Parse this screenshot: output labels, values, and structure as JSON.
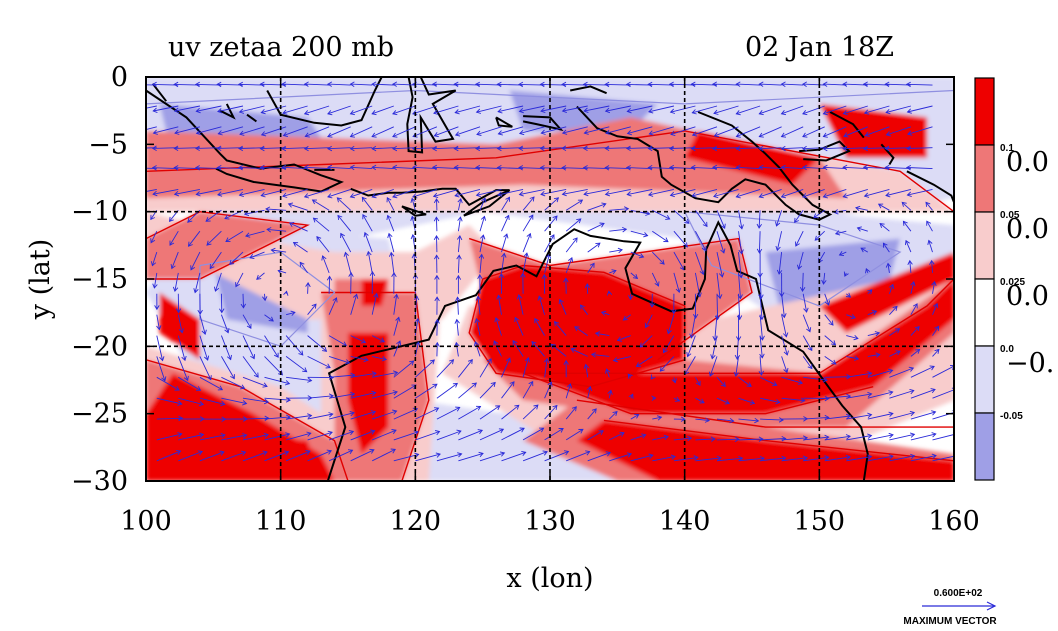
{
  "chart_data": {
    "type": "heatmap",
    "title_left": "uv zetaa 200 mb",
    "title_right": "02 Jan 18Z",
    "xlabel": "x (lon)",
    "ylabel": "y (lat)",
    "xlim": [
      100,
      160
    ],
    "ylim": [
      -30,
      0
    ],
    "x_ticks": [
      100,
      110,
      120,
      130,
      140,
      150,
      160
    ],
    "y_ticks": [
      0,
      -5,
      -10,
      -15,
      -20,
      -25,
      -30
    ],
    "x_tick_labels": [
      "100",
      "110",
      "120",
      "130",
      "140",
      "150",
      "160"
    ],
    "y_tick_labels": [
      "0",
      "−5",
      "−10",
      "−15",
      "−20",
      "−25",
      "−30"
    ],
    "grid_lon": [
      110,
      120,
      130,
      140,
      150
    ],
    "grid_lat": [
      -10,
      -20
    ],
    "colorbar": {
      "levels": [
        "0.1",
        "0.05",
        "0.025",
        "0.0",
        "-0.05"
      ],
      "side_labels": [
        "0.0",
        "0.0",
        "0.0",
        "−0."
      ],
      "colors": [
        "#ee0000",
        "#ee7777",
        "#f8cccc",
        "#ffffff",
        "#dcdcf6",
        "#9f9fe6"
      ]
    },
    "vector_reference": {
      "value": "0.600E+02",
      "label": "MAXIMUM VECTOR"
    },
    "colors": {
      "strong_positive": "#ee0000",
      "positive": "#ee7777",
      "weak_positive": "#f8cccc",
      "weak_negative": "#dcdcf6",
      "negative": "#9f9fe6",
      "vectors": "#2a2ad8",
      "coast": "#000000"
    }
  }
}
